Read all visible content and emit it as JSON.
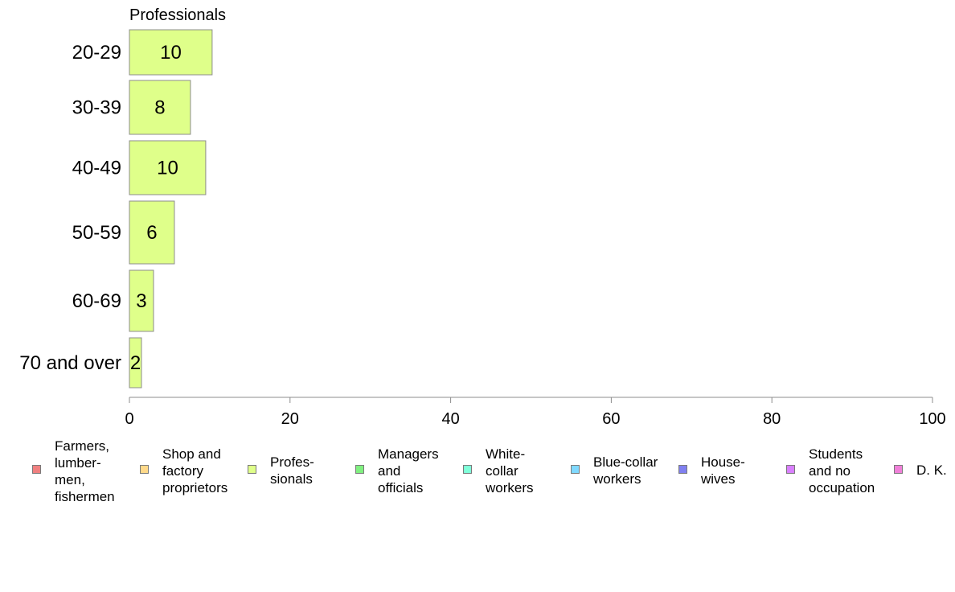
{
  "chart_data": {
    "type": "bar",
    "orientation": "horizontal",
    "title": "Professionals",
    "categories": [
      "20-29",
      "30-39",
      "40-49",
      "50-59",
      "60-69",
      "70 and over"
    ],
    "values": [
      10.3,
      7.6,
      9.5,
      5.6,
      3.0,
      1.5
    ],
    "data_labels": [
      "10",
      "8",
      "10",
      "6",
      "3",
      "2"
    ],
    "xlim": [
      0,
      100
    ],
    "xticks": [
      "0",
      "20",
      "40",
      "60",
      "80",
      "100"
    ],
    "bar_color": "#dfff8a",
    "grid": false,
    "legend_position": "bottom"
  },
  "legend": {
    "items": [
      {
        "label": "Farmers,\nlumber-\nmen,\nfishermen",
        "color": "#f08080",
        "icon": "square-swatch"
      },
      {
        "label": "Shop and\nfactory\nproprietors",
        "color": "#ffd98a",
        "icon": "square-swatch"
      },
      {
        "label": "Profes-\nsionals",
        "color": "#dfff8a",
        "icon": "square-swatch"
      },
      {
        "label": "Managers\nand\nofficials",
        "color": "#80f080",
        "icon": "square-swatch"
      },
      {
        "label": "White-\ncollar\nworkers",
        "color": "#80ffd9",
        "icon": "square-swatch"
      },
      {
        "label": "Blue-collar\nworkers",
        "color": "#80d9ff",
        "icon": "square-swatch"
      },
      {
        "label": "House-\nwives",
        "color": "#8080f0",
        "icon": "square-swatch"
      },
      {
        "label": "Students\nand no\noccupation",
        "color": "#d980ff",
        "icon": "square-swatch"
      },
      {
        "label": "D. K.",
        "color": "#f080d9",
        "icon": "square-swatch"
      }
    ]
  }
}
